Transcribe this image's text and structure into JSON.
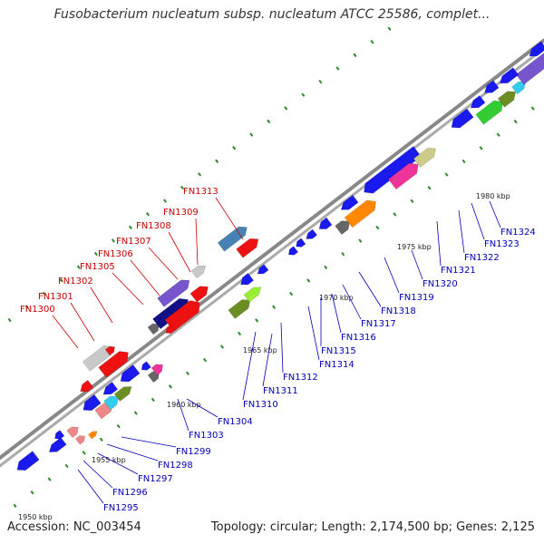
{
  "title": "Fusobacterium nucleatum subsp. nucleatum ATCC 25586, complet...",
  "footer": {
    "accession": "Accession: NC_003454",
    "summary": "Topology: circular; Length: 2,174,500 bp; Genes: 2,125"
  },
  "ticks": [
    {
      "label": "1950 kbp",
      "kbp": 1950
    },
    {
      "label": "1955 kbp",
      "kbp": 1955
    },
    {
      "label": "1960 kbp",
      "kbp": 1960
    },
    {
      "label": "1965 kbp",
      "kbp": 1965
    },
    {
      "label": "1970 kbp",
      "kbp": 1970
    },
    {
      "label": "1975 kbp",
      "kbp": 1975
    },
    {
      "label": "1980 kbp",
      "kbp": 1980
    }
  ],
  "labels_forward": [
    "FN1300",
    "FN1301",
    "FN1302",
    "FN1305",
    "FN1306",
    "FN1307",
    "FN1308",
    "FN1309",
    "FN1313"
  ],
  "labels_reverse": [
    "FN1295",
    "FN1296",
    "FN1297",
    "FN1298",
    "FN1299",
    "FN1303",
    "FN1304",
    "FN1310",
    "FN1311",
    "FN1312",
    "FN1314",
    "FN1315",
    "FN1316",
    "FN1317",
    "FN1318",
    "FN1319",
    "FN1320",
    "FN1321",
    "FN1322",
    "FN1323",
    "FN1324"
  ],
  "colors": {
    "forward_label": "#cc0000",
    "reverse_label": "#0000bb",
    "backbone": "#888888",
    "gene_blue": "#1a1aee",
    "gene_red": "#ee1111",
    "gene_grey": "#c8c8c8",
    "gene_pink": "#ee3399",
    "gene_purple": "#7755cc",
    "gene_orange": "#ff8800",
    "gene_green": "#33cc33",
    "gene_olive": "#6b8e23",
    "gene_cyan": "#33ccee",
    "gene_khaki": "#cccc88",
    "gene_salmon": "#ee8888",
    "gene_darkgrey": "#666666",
    "gene_steel": "#4682b4",
    "gene_navy": "#111188",
    "gene_lime": "#99ee33"
  }
}
